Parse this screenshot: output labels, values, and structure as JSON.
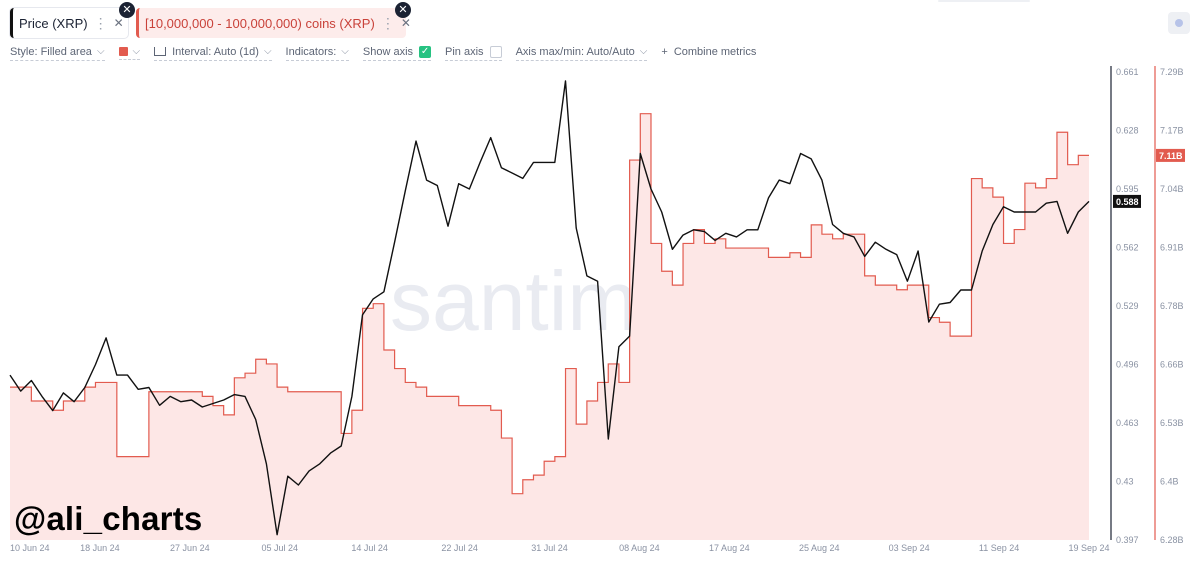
{
  "tabs": [
    {
      "label": "Price (XRP)"
    },
    {
      "label": "[10,000,000 - 100,000,000) coins (XRP)"
    }
  ],
  "toolbar": {
    "style": "Style: Filled area",
    "interval": "Interval: Auto (1d)",
    "indicators": "Indicators:",
    "show_axis": "Show axis",
    "pin_axis": "Pin axis",
    "axis_maxmin": "Axis max/min: Auto/Auto",
    "combine": "Combine metrics"
  },
  "watermark": "santiment",
  "handle": "@ali_charts",
  "colors": {
    "price": "#111111",
    "supply": "#e25b4f",
    "supply_fill": "#fde7e6",
    "show_axis_check": "#26c281"
  },
  "chart_data": {
    "type": "line",
    "x_tick_labels": [
      "10 Jun 24",
      "18 Jun 24",
      "27 Jun 24",
      "05 Jul 24",
      "14 Jul 24",
      "22 Jul 24",
      "31 Jul 24",
      "08 Aug 24",
      "17 Aug 24",
      "25 Aug 24",
      "03 Sep 24",
      "11 Sep 24",
      "19 Sep 24"
    ],
    "x_range": [
      "2024-06-10",
      "2024-09-19"
    ],
    "y_left_ticks": [
      "0.661",
      "0.628",
      "0.595",
      "0.562",
      "0.529",
      "0.496",
      "0.463",
      "0.43",
      "0.397"
    ],
    "y_left_range": [
      0.397,
      0.661
    ],
    "y_right_ticks": [
      "7.29B",
      "7.17B",
      "7.04B",
      "6.91B",
      "6.78B",
      "6.66B",
      "6.53B",
      "6.4B",
      "6.28B"
    ],
    "y_right_range": [
      6.28,
      7.29
    ],
    "last_price_label": "0.588",
    "last_supply_label": "7.11B",
    "series": [
      {
        "name": "Price (XRP)",
        "style": "line",
        "axis": "left",
        "points": [
          [
            "2024-06-10",
            0.49
          ],
          [
            "2024-06-11",
            0.481
          ],
          [
            "2024-06-12",
            0.487
          ],
          [
            "2024-06-13",
            0.478
          ],
          [
            "2024-06-14",
            0.47
          ],
          [
            "2024-06-15",
            0.48
          ],
          [
            "2024-06-16",
            0.475
          ],
          [
            "2024-06-17",
            0.483
          ],
          [
            "2024-06-18",
            0.496
          ],
          [
            "2024-06-19",
            0.511
          ],
          [
            "2024-06-20",
            0.49
          ],
          [
            "2024-06-21",
            0.49
          ],
          [
            "2024-06-22",
            0.482
          ],
          [
            "2024-06-23",
            0.483
          ],
          [
            "2024-06-24",
            0.473
          ],
          [
            "2024-06-25",
            0.478
          ],
          [
            "2024-06-26",
            0.475
          ],
          [
            "2024-06-27",
            0.476
          ],
          [
            "2024-06-28",
            0.472
          ],
          [
            "2024-06-29",
            0.474
          ],
          [
            "2024-06-30",
            0.476
          ],
          [
            "2024-07-01",
            0.479
          ],
          [
            "2024-07-02",
            0.478
          ],
          [
            "2024-07-03",
            0.465
          ],
          [
            "2024-07-04",
            0.44
          ],
          [
            "2024-07-05",
            0.4
          ],
          [
            "2024-07-06",
            0.433
          ],
          [
            "2024-07-07",
            0.428
          ],
          [
            "2024-07-08",
            0.436
          ],
          [
            "2024-07-09",
            0.44
          ],
          [
            "2024-07-10",
            0.446
          ],
          [
            "2024-07-11",
            0.45
          ],
          [
            "2024-07-12",
            0.478
          ],
          [
            "2024-07-13",
            0.524
          ],
          [
            "2024-07-14",
            0.533
          ],
          [
            "2024-07-15",
            0.537
          ],
          [
            "2024-07-16",
            0.565
          ],
          [
            "2024-07-17",
            0.594
          ],
          [
            "2024-07-18",
            0.622
          ],
          [
            "2024-07-19",
            0.6
          ],
          [
            "2024-07-20",
            0.597
          ],
          [
            "2024-07-21",
            0.574
          ],
          [
            "2024-07-22",
            0.598
          ],
          [
            "2024-07-23",
            0.595
          ],
          [
            "2024-07-24",
            0.61
          ],
          [
            "2024-07-25",
            0.624
          ],
          [
            "2024-07-26",
            0.607
          ],
          [
            "2024-07-27",
            0.604
          ],
          [
            "2024-07-28",
            0.601
          ],
          [
            "2024-07-29",
            0.61
          ],
          [
            "2024-07-30",
            0.61
          ],
          [
            "2024-07-31",
            0.61
          ],
          [
            "2024-08-01",
            0.656
          ],
          [
            "2024-08-02",
            0.573
          ],
          [
            "2024-08-03",
            0.546
          ],
          [
            "2024-08-04",
            0.543
          ],
          [
            "2024-08-05",
            0.454
          ],
          [
            "2024-08-06",
            0.506
          ],
          [
            "2024-08-07",
            0.512
          ],
          [
            "2024-08-08",
            0.615
          ],
          [
            "2024-08-09",
            0.595
          ],
          [
            "2024-08-10",
            0.582
          ],
          [
            "2024-08-11",
            0.561
          ],
          [
            "2024-08-12",
            0.569
          ],
          [
            "2024-08-13",
            0.572
          ],
          [
            "2024-08-14",
            0.571
          ],
          [
            "2024-08-15",
            0.566
          ],
          [
            "2024-08-16",
            0.57
          ],
          [
            "2024-08-17",
            0.568
          ],
          [
            "2024-08-18",
            0.572
          ],
          [
            "2024-08-19",
            0.572
          ],
          [
            "2024-08-20",
            0.59
          ],
          [
            "2024-08-21",
            0.6
          ],
          [
            "2024-08-22",
            0.598
          ],
          [
            "2024-08-23",
            0.615
          ],
          [
            "2024-08-24",
            0.612
          ],
          [
            "2024-08-25",
            0.6
          ],
          [
            "2024-08-26",
            0.575
          ],
          [
            "2024-08-27",
            0.57
          ],
          [
            "2024-08-28",
            0.568
          ],
          [
            "2024-08-29",
            0.557
          ],
          [
            "2024-08-30",
            0.565
          ],
          [
            "2024-08-31",
            0.561
          ],
          [
            "2024-09-01",
            0.558
          ],
          [
            "2024-09-02",
            0.543
          ],
          [
            "2024-09-03",
            0.56
          ],
          [
            "2024-09-04",
            0.52
          ],
          [
            "2024-09-05",
            0.53
          ],
          [
            "2024-09-06",
            0.531
          ],
          [
            "2024-09-07",
            0.538
          ],
          [
            "2024-09-08",
            0.538
          ],
          [
            "2024-09-09",
            0.56
          ],
          [
            "2024-09-10",
            0.575
          ],
          [
            "2024-09-11",
            0.585
          ],
          [
            "2024-09-12",
            0.582
          ],
          [
            "2024-09-13",
            0.582
          ],
          [
            "2024-09-14",
            0.582
          ],
          [
            "2024-09-15",
            0.587
          ],
          [
            "2024-09-16",
            0.588
          ],
          [
            "2024-09-17",
            0.57
          ],
          [
            "2024-09-18",
            0.582
          ],
          [
            "2024-09-19",
            0.588
          ]
        ]
      },
      {
        "name": "[10,000,000 - 100,000,000) coins (XRP)",
        "style": "filled-area",
        "axis": "right",
        "points": [
          [
            "2024-06-10",
            6.61
          ],
          [
            "2024-06-11",
            6.61
          ],
          [
            "2024-06-12",
            6.58
          ],
          [
            "2024-06-13",
            6.58
          ],
          [
            "2024-06-14",
            6.56
          ],
          [
            "2024-06-15",
            6.58
          ],
          [
            "2024-06-16",
            6.58
          ],
          [
            "2024-06-17",
            6.61
          ],
          [
            "2024-06-18",
            6.62
          ],
          [
            "2024-06-19",
            6.62
          ],
          [
            "2024-06-20",
            6.46
          ],
          [
            "2024-06-21",
            6.46
          ],
          [
            "2024-06-22",
            6.46
          ],
          [
            "2024-06-23",
            6.6
          ],
          [
            "2024-06-24",
            6.6
          ],
          [
            "2024-06-25",
            6.6
          ],
          [
            "2024-06-26",
            6.6
          ],
          [
            "2024-06-27",
            6.6
          ],
          [
            "2024-06-28",
            6.59
          ],
          [
            "2024-06-29",
            6.57
          ],
          [
            "2024-06-30",
            6.55
          ],
          [
            "2024-07-01",
            6.63
          ],
          [
            "2024-07-02",
            6.64
          ],
          [
            "2024-07-03",
            6.67
          ],
          [
            "2024-07-04",
            6.66
          ],
          [
            "2024-07-05",
            6.61
          ],
          [
            "2024-07-06",
            6.6
          ],
          [
            "2024-07-07",
            6.6
          ],
          [
            "2024-07-08",
            6.6
          ],
          [
            "2024-07-09",
            6.6
          ],
          [
            "2024-07-10",
            6.6
          ],
          [
            "2024-07-11",
            6.51
          ],
          [
            "2024-07-12",
            6.56
          ],
          [
            "2024-07-13",
            6.78
          ],
          [
            "2024-07-14",
            6.79
          ],
          [
            "2024-07-15",
            6.69
          ],
          [
            "2024-07-16",
            6.65
          ],
          [
            "2024-07-17",
            6.62
          ],
          [
            "2024-07-18",
            6.61
          ],
          [
            "2024-07-19",
            6.59
          ],
          [
            "2024-07-20",
            6.59
          ],
          [
            "2024-07-21",
            6.59
          ],
          [
            "2024-07-22",
            6.57
          ],
          [
            "2024-07-23",
            6.57
          ],
          [
            "2024-07-24",
            6.57
          ],
          [
            "2024-07-25",
            6.56
          ],
          [
            "2024-07-26",
            6.5
          ],
          [
            "2024-07-27",
            6.38
          ],
          [
            "2024-07-28",
            6.41
          ],
          [
            "2024-07-29",
            6.42
          ],
          [
            "2024-07-30",
            6.45
          ],
          [
            "2024-07-31",
            6.46
          ],
          [
            "2024-08-01",
            6.65
          ],
          [
            "2024-08-02",
            6.53
          ],
          [
            "2024-08-03",
            6.58
          ],
          [
            "2024-08-04",
            6.62
          ],
          [
            "2024-08-05",
            6.66
          ],
          [
            "2024-08-06",
            6.62
          ],
          [
            "2024-08-07",
            7.1
          ],
          [
            "2024-08-08",
            7.2
          ],
          [
            "2024-08-09",
            6.92
          ],
          [
            "2024-08-10",
            6.86
          ],
          [
            "2024-08-11",
            6.83
          ],
          [
            "2024-08-12",
            6.92
          ],
          [
            "2024-08-13",
            6.95
          ],
          [
            "2024-08-14",
            6.92
          ],
          [
            "2024-08-15",
            6.93
          ],
          [
            "2024-08-16",
            6.91
          ],
          [
            "2024-08-17",
            6.91
          ],
          [
            "2024-08-18",
            6.91
          ],
          [
            "2024-08-19",
            6.91
          ],
          [
            "2024-08-20",
            6.89
          ],
          [
            "2024-08-21",
            6.89
          ],
          [
            "2024-08-22",
            6.9
          ],
          [
            "2024-08-23",
            6.89
          ],
          [
            "2024-08-24",
            6.96
          ],
          [
            "2024-08-25",
            6.94
          ],
          [
            "2024-08-26",
            6.93
          ],
          [
            "2024-08-27",
            6.94
          ],
          [
            "2024-08-28",
            6.94
          ],
          [
            "2024-08-29",
            6.85
          ],
          [
            "2024-08-30",
            6.83
          ],
          [
            "2024-08-31",
            6.83
          ],
          [
            "2024-09-01",
            6.82
          ],
          [
            "2024-09-02",
            6.83
          ],
          [
            "2024-09-03",
            6.83
          ],
          [
            "2024-09-04",
            6.76
          ],
          [
            "2024-09-05",
            6.75
          ],
          [
            "2024-09-06",
            6.72
          ],
          [
            "2024-09-07",
            6.72
          ],
          [
            "2024-09-08",
            7.06
          ],
          [
            "2024-09-09",
            7.04
          ],
          [
            "2024-09-10",
            7.02
          ],
          [
            "2024-09-11",
            6.92
          ],
          [
            "2024-09-12",
            6.95
          ],
          [
            "2024-09-13",
            7.05
          ],
          [
            "2024-09-14",
            7.04
          ],
          [
            "2024-09-15",
            7.06
          ],
          [
            "2024-09-16",
            7.16
          ],
          [
            "2024-09-17",
            7.09
          ],
          [
            "2024-09-18",
            7.11
          ],
          [
            "2024-09-19",
            7.11
          ]
        ]
      }
    ]
  }
}
